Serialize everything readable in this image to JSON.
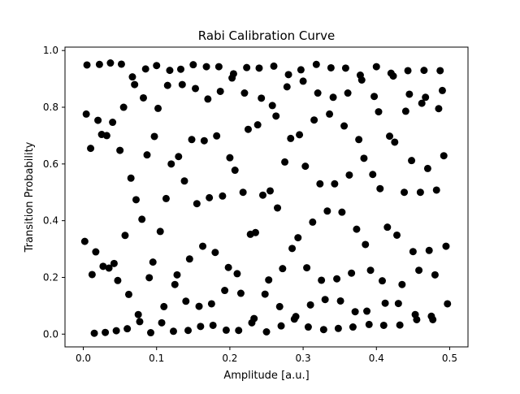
{
  "chart_data": {
    "type": "scatter",
    "title": "Rabi Calibration Curve",
    "xlabel": "Amplitude [a.u.]",
    "ylabel": "Transition Probability",
    "xlim": [
      -0.025,
      0.525
    ],
    "ylim": [
      -0.045,
      1.012
    ],
    "xticks": [
      0.0,
      0.1,
      0.2,
      0.3,
      0.4,
      0.5
    ],
    "xtick_labels": [
      "0.0",
      "0.1",
      "0.2",
      "0.3",
      "0.4",
      "0.5"
    ],
    "yticks": [
      0.0,
      0.2,
      0.4,
      0.6,
      0.8,
      1.0
    ],
    "ytick_labels": [
      "0.0",
      "0.2",
      "0.4",
      "0.6",
      "0.8",
      "1.0"
    ],
    "grid": false,
    "legend": false,
    "marker_color": "#000000",
    "points": [
      [
        0.002,
        0.327
      ],
      [
        0.004,
        0.776
      ],
      [
        0.005,
        0.949
      ],
      [
        0.01,
        0.655
      ],
      [
        0.012,
        0.21
      ],
      [
        0.015,
        0.003
      ],
      [
        0.017,
        0.29
      ],
      [
        0.02,
        0.754
      ],
      [
        0.022,
        0.951
      ],
      [
        0.025,
        0.704
      ],
      [
        0.027,
        0.239
      ],
      [
        0.03,
        0.006
      ],
      [
        0.032,
        0.7
      ],
      [
        0.035,
        0.233
      ],
      [
        0.037,
        0.956
      ],
      [
        0.04,
        0.747
      ],
      [
        0.042,
        0.249
      ],
      [
        0.045,
        0.012
      ],
      [
        0.047,
        0.189
      ],
      [
        0.05,
        0.648
      ],
      [
        0.052,
        0.952
      ],
      [
        0.055,
        0.8
      ],
      [
        0.057,
        0.348
      ],
      [
        0.06,
        0.019
      ],
      [
        0.062,
        0.14
      ],
      [
        0.065,
        0.55
      ],
      [
        0.067,
        0.907
      ],
      [
        0.07,
        0.88
      ],
      [
        0.072,
        0.474
      ],
      [
        0.075,
        0.069
      ],
      [
        0.077,
        0.044
      ],
      [
        0.08,
        0.405
      ],
      [
        0.082,
        0.833
      ],
      [
        0.085,
        0.935
      ],
      [
        0.087,
        0.632
      ],
      [
        0.09,
        0.199
      ],
      [
        0.092,
        0.005
      ],
      [
        0.095,
        0.254
      ],
      [
        0.097,
        0.697
      ],
      [
        0.1,
        0.947
      ],
      [
        0.102,
        0.796
      ],
      [
        0.105,
        0.362
      ],
      [
        0.107,
        0.04
      ],
      [
        0.11,
        0.097
      ],
      [
        0.113,
        0.478
      ],
      [
        0.115,
        0.877
      ],
      [
        0.118,
        0.93
      ],
      [
        0.12,
        0.6
      ],
      [
        0.123,
        0.01
      ],
      [
        0.125,
        0.175
      ],
      [
        0.128,
        0.209
      ],
      [
        0.13,
        0.626
      ],
      [
        0.133,
        0.934
      ],
      [
        0.135,
        0.88
      ],
      [
        0.138,
        0.54
      ],
      [
        0.14,
        0.116
      ],
      [
        0.143,
        0.013
      ],
      [
        0.145,
        0.265
      ],
      [
        0.148,
        0.686
      ],
      [
        0.15,
        0.95
      ],
      [
        0.153,
        0.866
      ],
      [
        0.155,
        0.46
      ],
      [
        0.158,
        0.098
      ],
      [
        0.16,
        0.027
      ],
      [
        0.163,
        0.31
      ],
      [
        0.165,
        0.682
      ],
      [
        0.168,
        0.943
      ],
      [
        0.17,
        0.829
      ],
      [
        0.172,
        0.481
      ],
      [
        0.175,
        0.107
      ],
      [
        0.177,
        0.031
      ],
      [
        0.18,
        0.288
      ],
      [
        0.182,
        0.699
      ],
      [
        0.185,
        0.943
      ],
      [
        0.187,
        0.856
      ],
      [
        0.19,
        0.487
      ],
      [
        0.193,
        0.154
      ],
      [
        0.195,
        0.014
      ],
      [
        0.198,
        0.235
      ],
      [
        0.2,
        0.622
      ],
      [
        0.203,
        0.903
      ],
      [
        0.205,
        0.918
      ],
      [
        0.207,
        0.578
      ],
      [
        0.21,
        0.213
      ],
      [
        0.212,
        0.013
      ],
      [
        0.215,
        0.144
      ],
      [
        0.218,
        0.5
      ],
      [
        0.22,
        0.85
      ],
      [
        0.223,
        0.94
      ],
      [
        0.225,
        0.722
      ],
      [
        0.228,
        0.352
      ],
      [
        0.23,
        0.04
      ],
      [
        0.233,
        0.055
      ],
      [
        0.235,
        0.358
      ],
      [
        0.238,
        0.738
      ],
      [
        0.24,
        0.938
      ],
      [
        0.243,
        0.832
      ],
      [
        0.245,
        0.49
      ],
      [
        0.248,
        0.141
      ],
      [
        0.25,
        0.008
      ],
      [
        0.253,
        0.191
      ],
      [
        0.255,
        0.505
      ],
      [
        0.258,
        0.806
      ],
      [
        0.26,
        0.945
      ],
      [
        0.263,
        0.769
      ],
      [
        0.265,
        0.445
      ],
      [
        0.268,
        0.097
      ],
      [
        0.27,
        0.029
      ],
      [
        0.272,
        0.231
      ],
      [
        0.275,
        0.607
      ],
      [
        0.278,
        0.872
      ],
      [
        0.28,
        0.915
      ],
      [
        0.283,
        0.69
      ],
      [
        0.285,
        0.302
      ],
      [
        0.288,
        0.053
      ],
      [
        0.29,
        0.062
      ],
      [
        0.293,
        0.34
      ],
      [
        0.295,
        0.703
      ],
      [
        0.297,
        0.932
      ],
      [
        0.3,
        0.892
      ],
      [
        0.303,
        0.592
      ],
      [
        0.305,
        0.234
      ],
      [
        0.307,
        0.025
      ],
      [
        0.31,
        0.103
      ],
      [
        0.313,
        0.395
      ],
      [
        0.315,
        0.755
      ],
      [
        0.318,
        0.951
      ],
      [
        0.32,
        0.85
      ],
      [
        0.323,
        0.53
      ],
      [
        0.325,
        0.19
      ],
      [
        0.328,
        0.016
      ],
      [
        0.33,
        0.122
      ],
      [
        0.333,
        0.434
      ],
      [
        0.336,
        0.776
      ],
      [
        0.338,
        0.939
      ],
      [
        0.341,
        0.835
      ],
      [
        0.343,
        0.53
      ],
      [
        0.346,
        0.195
      ],
      [
        0.348,
        0.02
      ],
      [
        0.351,
        0.117
      ],
      [
        0.353,
        0.43
      ],
      [
        0.356,
        0.734
      ],
      [
        0.358,
        0.938
      ],
      [
        0.361,
        0.85
      ],
      [
        0.363,
        0.561
      ],
      [
        0.366,
        0.215
      ],
      [
        0.368,
        0.025
      ],
      [
        0.371,
        0.079
      ],
      [
        0.373,
        0.37
      ],
      [
        0.376,
        0.686
      ],
      [
        0.378,
        0.913
      ],
      [
        0.38,
        0.896
      ],
      [
        0.383,
        0.62
      ],
      [
        0.385,
        0.316
      ],
      [
        0.387,
        0.081
      ],
      [
        0.39,
        0.034
      ],
      [
        0.392,
        0.225
      ],
      [
        0.395,
        0.563
      ],
      [
        0.397,
        0.838
      ],
      [
        0.4,
        0.943
      ],
      [
        0.403,
        0.784
      ],
      [
        0.405,
        0.513
      ],
      [
        0.408,
        0.188
      ],
      [
        0.41,
        0.031
      ],
      [
        0.412,
        0.109
      ],
      [
        0.415,
        0.377
      ],
      [
        0.418,
        0.698
      ],
      [
        0.42,
        0.92
      ],
      [
        0.423,
        0.91
      ],
      [
        0.425,
        0.677
      ],
      [
        0.428,
        0.349
      ],
      [
        0.43,
        0.108
      ],
      [
        0.432,
        0.032
      ],
      [
        0.435,
        0.175
      ],
      [
        0.438,
        0.5
      ],
      [
        0.44,
        0.786
      ],
      [
        0.443,
        0.929
      ],
      [
        0.445,
        0.846
      ],
      [
        0.448,
        0.612
      ],
      [
        0.45,
        0.291
      ],
      [
        0.453,
        0.069
      ],
      [
        0.455,
        0.051
      ],
      [
        0.458,
        0.225
      ],
      [
        0.46,
        0.5
      ],
      [
        0.462,
        0.814
      ],
      [
        0.465,
        0.93
      ],
      [
        0.467,
        0.835
      ],
      [
        0.47,
        0.584
      ],
      [
        0.472,
        0.295
      ],
      [
        0.475,
        0.063
      ],
      [
        0.477,
        0.051
      ],
      [
        0.48,
        0.209
      ],
      [
        0.482,
        0.508
      ],
      [
        0.485,
        0.795
      ],
      [
        0.487,
        0.929
      ],
      [
        0.49,
        0.859
      ],
      [
        0.492,
        0.629
      ],
      [
        0.495,
        0.31
      ],
      [
        0.497,
        0.107
      ]
    ]
  }
}
